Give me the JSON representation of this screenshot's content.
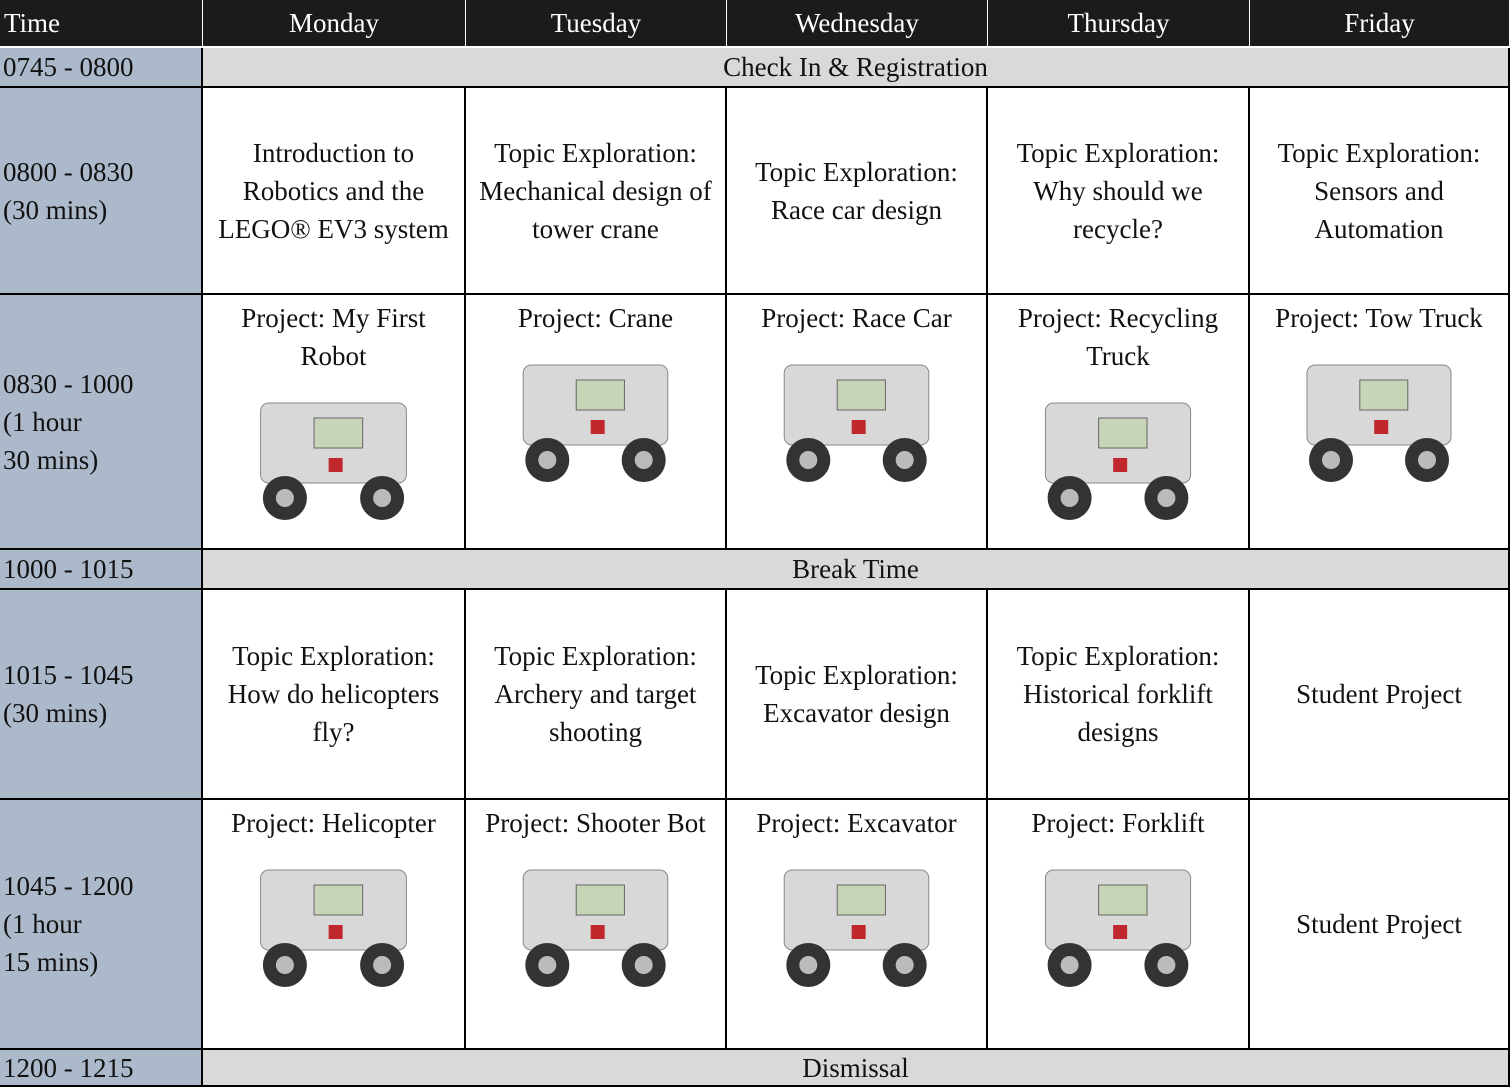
{
  "header": [
    "Time",
    "Monday",
    "Tuesday",
    "Wednesday",
    "Thursday",
    "Friday"
  ],
  "rows": [
    {
      "time": [
        "0745 - 0800"
      ],
      "merged": "Check In & Registration"
    },
    {
      "time": [
        "0800 - 0830",
        "(30 mins)"
      ],
      "cells": [
        "Introduction to Robotics and the LEGO® EV3 system",
        "Topic Exploration: Mechanical design of tower crane",
        "Topic Exploration: Race car design",
        "Topic Exploration: Why should we recycle?",
        "Topic Exploration: Sensors and Automation"
      ]
    },
    {
      "time": [
        "0830 - 1000",
        "(1 hour",
        "30 mins)"
      ],
      "cells": [
        "Project: My First Robot",
        "Project: Crane",
        "Project: Race Car",
        "Project: Recycling Truck",
        "Project: Tow Truck"
      ]
    },
    {
      "time": [
        "1000 - 1015"
      ],
      "merged": "Break Time"
    },
    {
      "time": [
        "1015 - 1045",
        "(30 mins)"
      ],
      "cells": [
        "Topic Exploration: How do helicopters fly?",
        "Topic Exploration: Archery and target shooting",
        "Topic Exploration: Excavator design",
        "Topic Exploration: Historical forklift designs",
        "Student Project"
      ]
    },
    {
      "time": [
        "1045 - 1200",
        "(1 hour",
        "15 mins)"
      ],
      "cells": [
        "Project: Helicopter",
        "Project: Shooter Bot",
        "Project: Excavator",
        "Project: Forklift",
        "Student Project"
      ]
    },
    {
      "time": [
        "1200 - 1215"
      ],
      "merged": "Dismissal"
    }
  ]
}
